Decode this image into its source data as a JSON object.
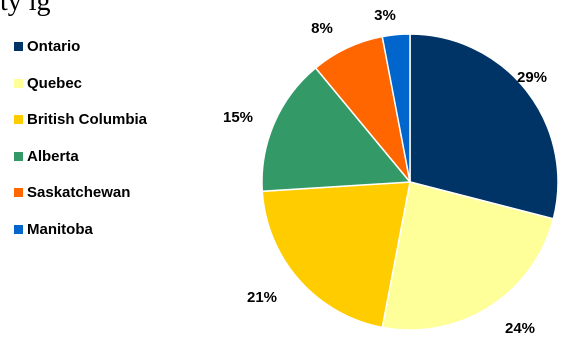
{
  "title_fragment": "ty ig",
  "chart_data": {
    "type": "pie",
    "title": "",
    "categories": [
      "Ontario",
      "Quebec",
      "British Columbia",
      "Alberta",
      "Saskatchewan",
      "Manitoba"
    ],
    "values": [
      29,
      24,
      21,
      15,
      8,
      3
    ],
    "data_labels": [
      "29%",
      "24%",
      "21%",
      "15%",
      "8%",
      "3%"
    ],
    "colors": [
      "#003366",
      "#FFFF99",
      "#FFCC00",
      "#339966",
      "#FF6600",
      "#0066CC"
    ],
    "legend_placement": "left",
    "start_angle": "12 o'clock",
    "direction": "clockwise"
  }
}
